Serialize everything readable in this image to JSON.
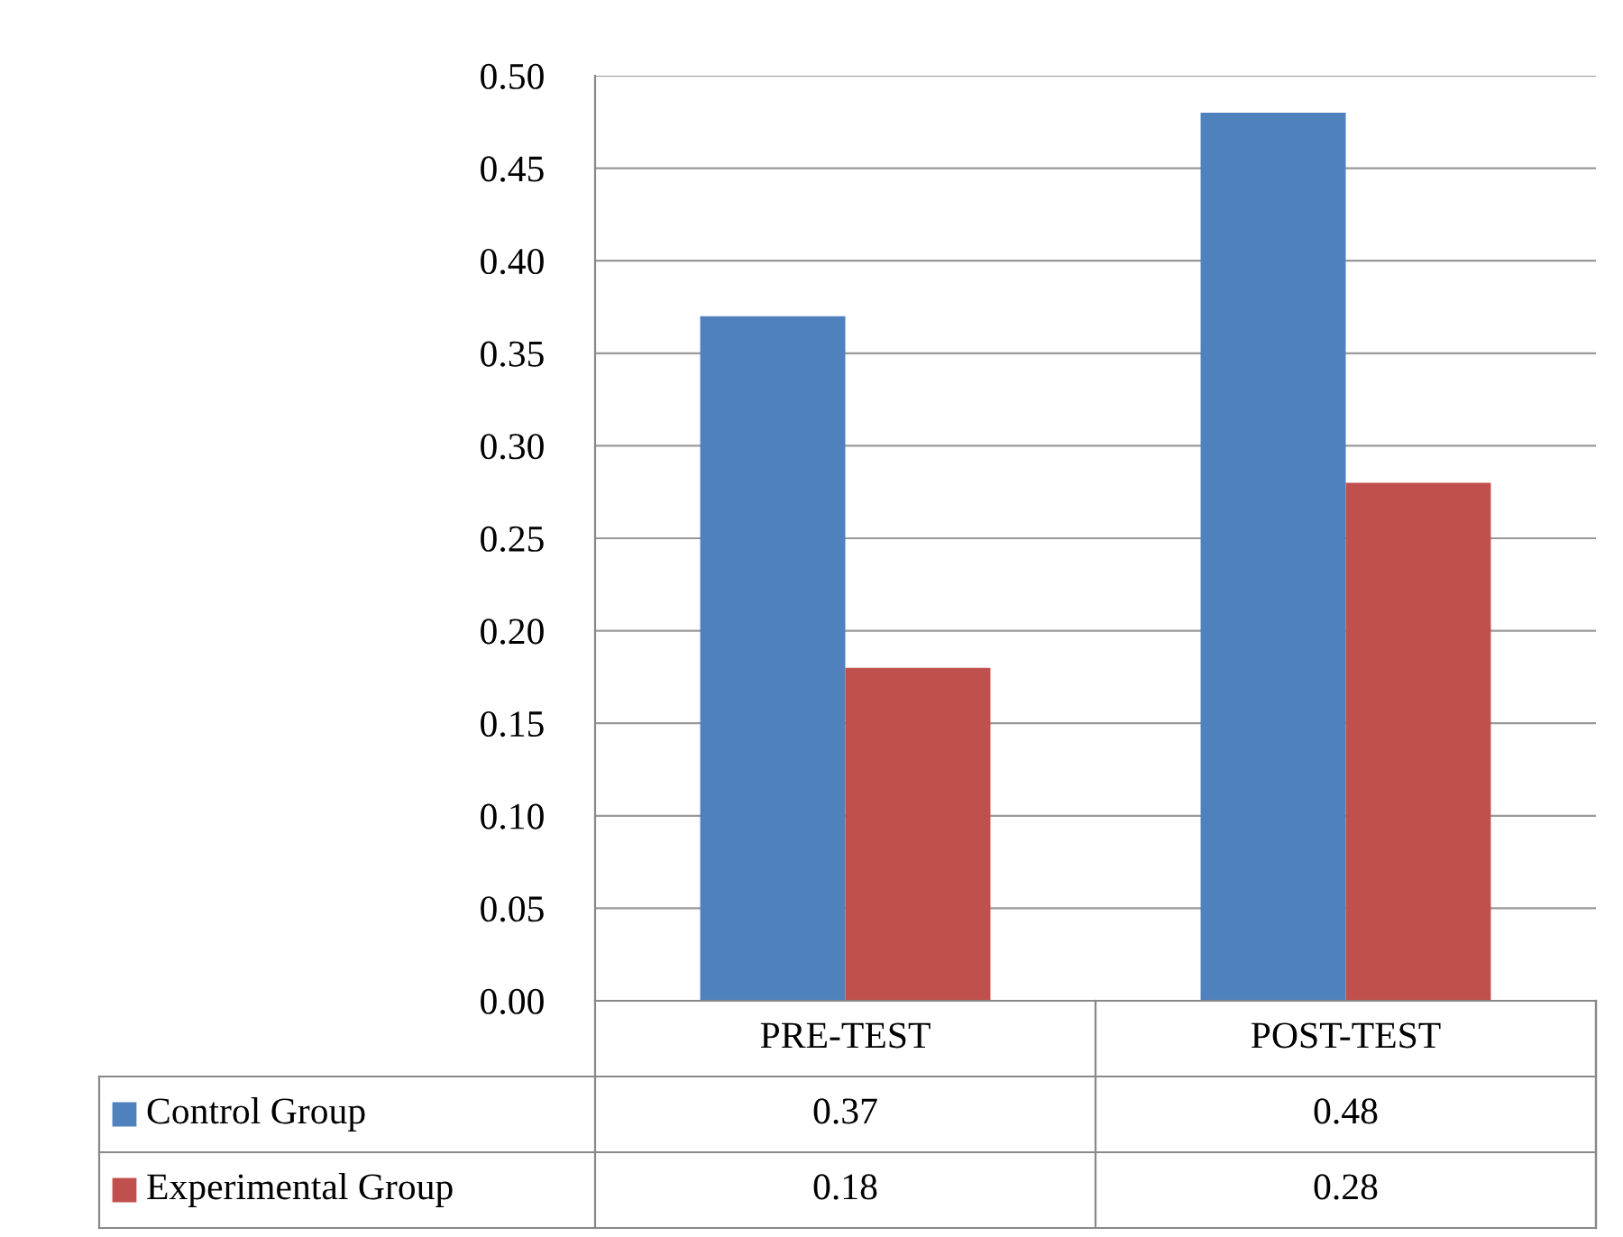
{
  "chart_data": {
    "type": "bar",
    "categories": [
      "PRE-TEST",
      "POST-TEST"
    ],
    "series": [
      {
        "name": "Control Group",
        "color": "#4f81bd",
        "values": [
          0.37,
          0.48
        ]
      },
      {
        "name": "Experimental Group",
        "color": "#c0504d",
        "values": [
          0.18,
          0.28
        ]
      }
    ],
    "ylim": [
      0,
      0.5
    ],
    "yticks": [
      {
        "value": 0,
        "label": "0.00"
      },
      {
        "value": 0.05,
        "label": "0.05"
      },
      {
        "value": 0.1,
        "label": "0.10"
      },
      {
        "value": 0.15,
        "label": "0.15"
      },
      {
        "value": 0.2,
        "label": "0.20"
      },
      {
        "value": 0.25,
        "label": "0.25"
      },
      {
        "value": 0.3,
        "label": "0.30"
      },
      {
        "value": 0.35,
        "label": "0.35"
      },
      {
        "value": 0.4,
        "label": "0.40"
      },
      {
        "value": 0.45,
        "label": "0.45"
      },
      {
        "value": 0.5,
        "label": "0.50"
      }
    ],
    "grid": "y",
    "legend": "bottom",
    "data_labels": true
  }
}
